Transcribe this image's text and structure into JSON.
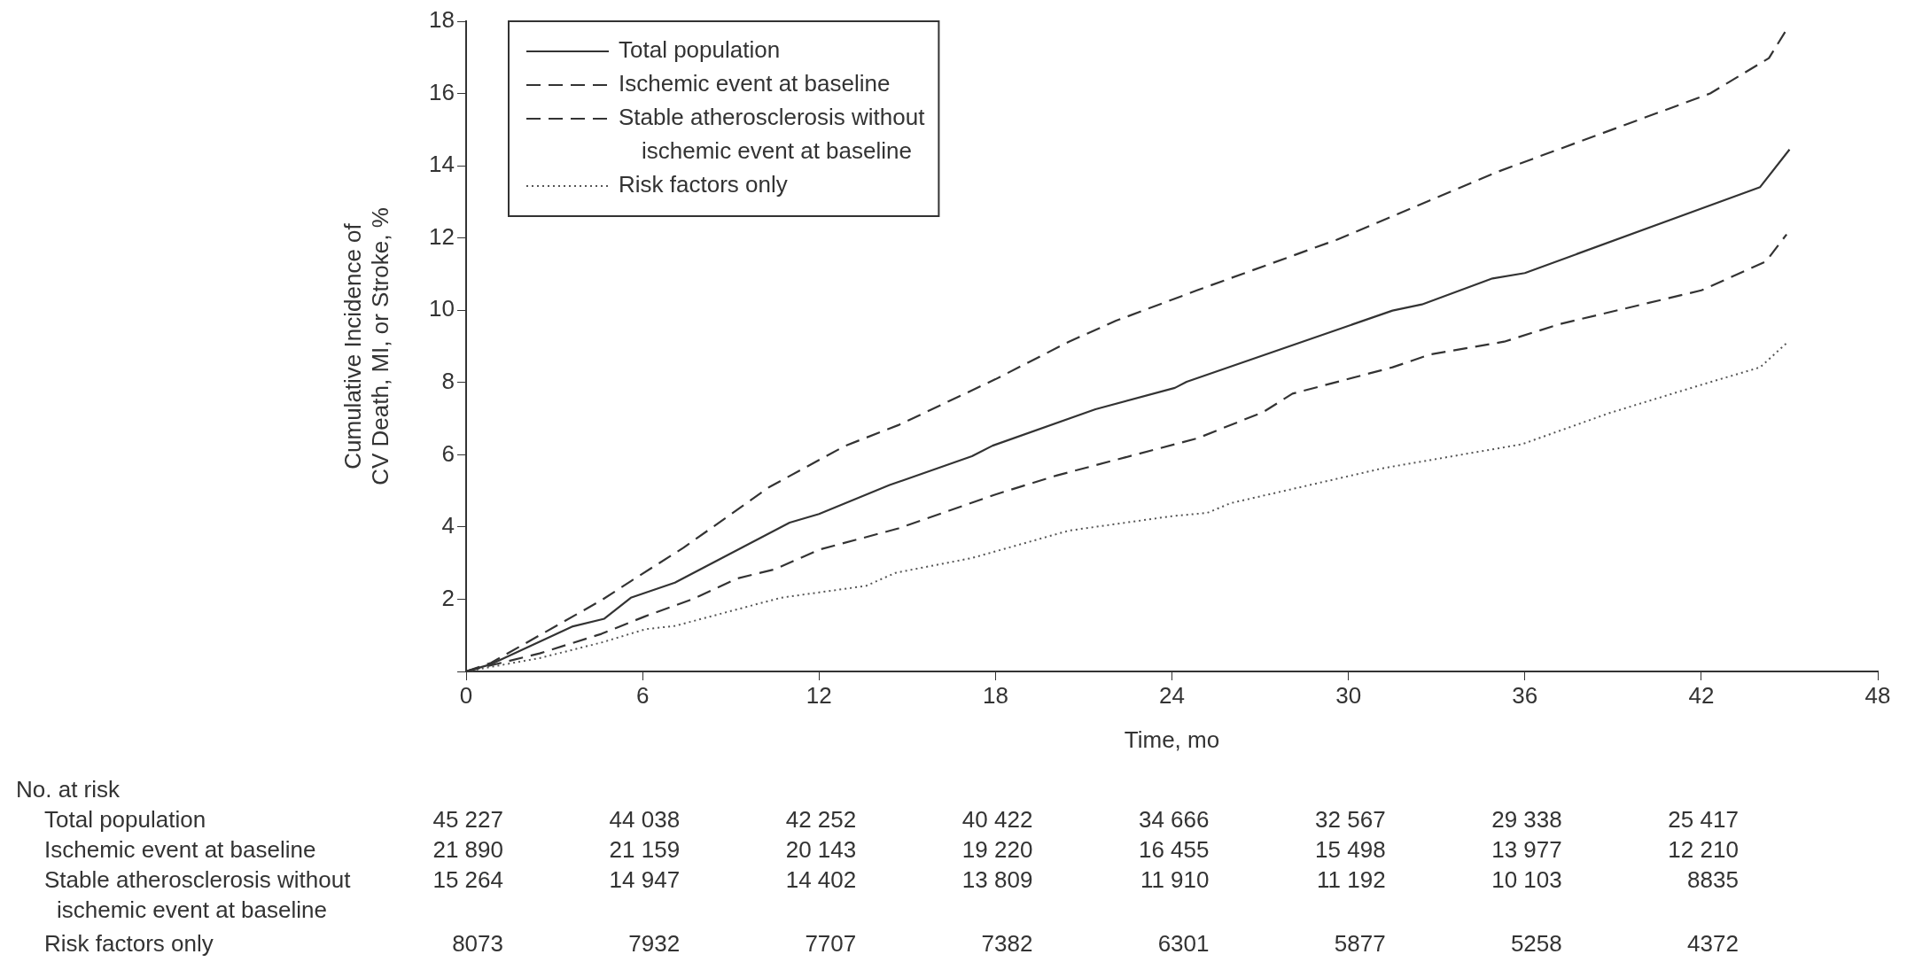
{
  "chart_data": {
    "type": "line",
    "xlabel": "Time, mo",
    "ylabel": "Cumulative Incidence of\nCV Death, MI, or Stroke, %",
    "xlim": [
      0,
      48
    ],
    "xticks": [
      0,
      6,
      12,
      18,
      24,
      30,
      36,
      42,
      48
    ],
    "ylim": [
      0,
      18
    ],
    "yticks": [
      {
        "value": 0,
        "label": null
      },
      2,
      4,
      6,
      8,
      10,
      12,
      14,
      16,
      18
    ],
    "grid": false,
    "legend": "top left",
    "series": [
      {
        "name": "Total population",
        "color": "#333333",
        "line_style": "solid",
        "x": [
          0,
          0.85,
          3.6,
          4.7,
          5.6,
          7.1,
          11.0,
          12.0,
          14.4,
          17.2,
          17.9,
          21.4,
          24.1,
          24.5,
          31.5,
          32.5,
          34.9,
          36.0,
          44.0,
          45.0
        ],
        "values": [
          0,
          0.2,
          1.24,
          1.46,
          2.04,
          2.46,
          4.12,
          4.36,
          5.16,
          5.96,
          6.25,
          7.26,
          7.85,
          8.02,
          9.99,
          10.16,
          10.88,
          11.03,
          13.41,
          14.45
        ]
      },
      {
        "name": "Ischemic event at baseline",
        "color": "#333333",
        "line_style": "dashed",
        "x": [
          0,
          0.85,
          4.6,
          5.6,
          7.4,
          10.3,
          12.9,
          14.7,
          18.0,
          20.5,
          22.1,
          24.85,
          29.6,
          35.1,
          42.3,
          44.3,
          44.9
        ],
        "values": [
          0,
          0.24,
          1.97,
          2.5,
          3.43,
          5.1,
          6.25,
          6.82,
          8.09,
          9.13,
          9.71,
          10.55,
          11.95,
          13.84,
          16.0,
          16.98,
          17.77
        ]
      },
      {
        "name": "Stable atherosclerosis without\nischemic event at baseline",
        "color": "#333333",
        "line_style": "dashed",
        "x": [
          0,
          2.5,
          4.6,
          6.1,
          7.7,
          9.2,
          10.5,
          12.0,
          14.7,
          18.0,
          20.1,
          24.85,
          27.1,
          28.1,
          31.5,
          32.8,
          35.3,
          37.2,
          42.0,
          44.2,
          44.9
        ],
        "values": [
          0,
          0.5,
          1.04,
          1.53,
          2.0,
          2.57,
          2.83,
          3.37,
          3.96,
          4.9,
          5.43,
          6.45,
          7.18,
          7.69,
          8.42,
          8.78,
          9.13,
          9.62,
          10.55,
          11.35,
          12.1
        ]
      },
      {
        "name": "Risk factors only",
        "color": "#555555",
        "line_style": "dotted",
        "x": [
          0,
          2.5,
          4.6,
          6.1,
          7.1,
          10.7,
          13.6,
          14.6,
          17.2,
          20.5,
          24.0,
          25.2,
          26.0,
          31.2,
          35.9,
          38.9,
          42.1,
          44.0,
          44.9
        ],
        "values": [
          0,
          0.37,
          0.8,
          1.17,
          1.26,
          2.04,
          2.37,
          2.73,
          3.14,
          3.9,
          4.3,
          4.39,
          4.66,
          5.63,
          6.29,
          7.16,
          7.96,
          8.42,
          9.09
        ]
      }
    ],
    "annotations": [
      "No. at risk",
      "Total population",
      "45 227",
      "44 038",
      "42 252",
      "40 422",
      "34 666",
      "32 567",
      "29 338",
      "25 417",
      "Ischemic event at baseline",
      "21 890",
      "21 159",
      "20 143",
      "19 220",
      "16 455",
      "15 498",
      "13 977",
      "12 210",
      "Stable atherosclerosis without\nischemic event at baseline",
      "15 264",
      "14 947",
      "14 402",
      "13 809",
      "11 910",
      "11 192",
      "10 103",
      "8835",
      "Risk factors only",
      "8073",
      "7932",
      "7707",
      "7382",
      "6301",
      "5877",
      "5258",
      "4372"
    ]
  }
}
